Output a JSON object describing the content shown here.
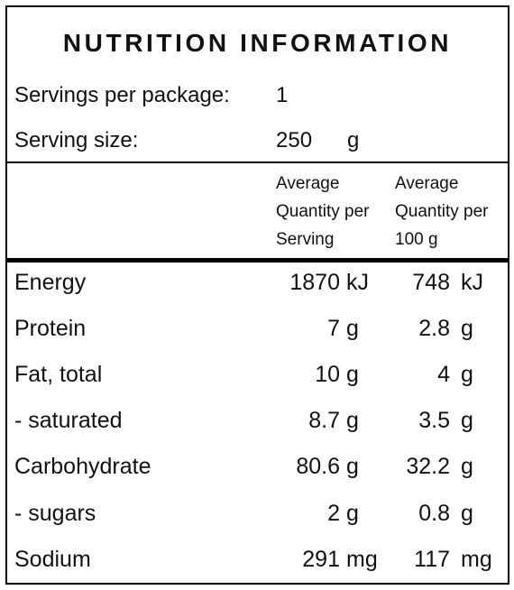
{
  "title": "NUTRITION INFORMATION",
  "servings": {
    "label": "Servings per package:",
    "value": "1"
  },
  "serving_size": {
    "label": "Serving size:",
    "value": "250",
    "unit": "g"
  },
  "columns": {
    "per_serving": [
      "Average",
      "Quantity per",
      "Serving"
    ],
    "per_100g": [
      "Average",
      "Quantity per",
      "100 g"
    ]
  },
  "rows": [
    {
      "name": "Energy",
      "per_serving": "1870",
      "unit_serving": "kJ",
      "per_100g": "748",
      "unit_100g": "kJ"
    },
    {
      "name": "Protein",
      "per_serving": "7",
      "unit_serving": "g",
      "per_100g": "2.8",
      "unit_100g": "g"
    },
    {
      "name": "Fat, total",
      "per_serving": "10",
      "unit_serving": "g",
      "per_100g": "4",
      "unit_100g": "g"
    },
    {
      "name": "- saturated",
      "per_serving": "8.7",
      "unit_serving": "g",
      "per_100g": "3.5",
      "unit_100g": "g"
    },
    {
      "name": "Carbohydrate",
      "per_serving": "80.6",
      "unit_serving": "g",
      "per_100g": "32.2",
      "unit_100g": "g"
    },
    {
      "name": "- sugars",
      "per_serving": "2",
      "unit_serving": "g",
      "per_100g": "0.8",
      "unit_100g": "g"
    },
    {
      "name": "Sodium",
      "per_serving": "291",
      "unit_serving": "mg",
      "per_100g": "117",
      "unit_100g": "mg"
    }
  ]
}
